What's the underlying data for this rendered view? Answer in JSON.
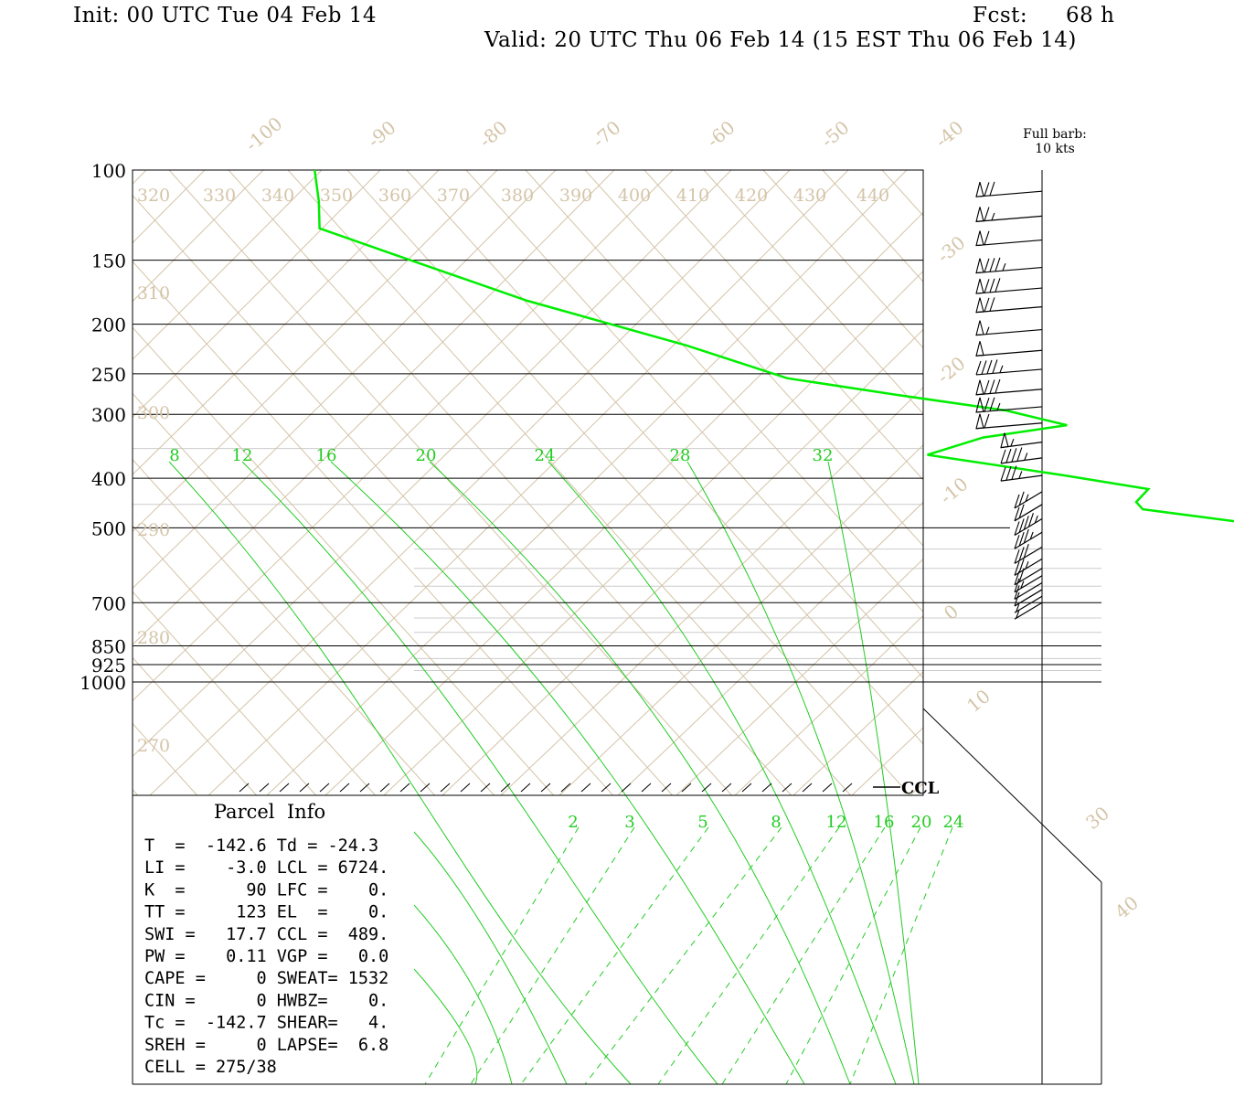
{
  "header": {
    "init": "Init: 00 UTC Tue 04 Feb 14",
    "fcst_label": "Fcst:",
    "fcst_value": "68 h",
    "valid": "Valid: 20 UTC Thu 06 Feb 14 (15 EST Thu 06 Feb 14)"
  },
  "chart_data": {
    "type": "line",
    "title": "",
    "x_axis": "temperature (C), skewed",
    "y_axis": "pressure (hPa), log scale",
    "pressure_tick_labels": [
      "100",
      "150",
      "200",
      "250",
      "300",
      "400",
      "500",
      "700",
      "850",
      "925",
      "1000"
    ],
    "pressure_lines": [
      100,
      150,
      200,
      250,
      300,
      400,
      500,
      700,
      850,
      925,
      1000
    ],
    "temperature_labels": [
      "-100",
      "-90",
      "-80",
      "-70",
      "-60",
      "-50",
      "-40",
      "-30",
      "-20",
      "-10",
      "0",
      "10",
      "30",
      "40"
    ],
    "theta_labels_top": [
      "320",
      "330",
      "340",
      "350",
      "360",
      "370",
      "380",
      "390",
      "400",
      "410",
      "420",
      "430",
      "440"
    ],
    "theta_labels_left": [
      "310",
      "300",
      "290",
      "280",
      "270"
    ],
    "moist_adiabat_labels": [
      "8",
      "12",
      "16",
      "20",
      "24",
      "28",
      "32"
    ],
    "mixing_ratio_labels": [
      "2",
      "3",
      "5",
      "8",
      "12",
      "16",
      "20",
      "24"
    ],
    "ccl_label": "CCL",
    "series": [
      {
        "kind": "temperature",
        "color": "#00ee00",
        "points": [
          {
            "p": 100,
            "t": -28
          },
          {
            "p": 115,
            "t": -29
          },
          {
            "p": 130,
            "t": -30
          },
          {
            "p": 145,
            "t": -28
          },
          {
            "p": 180,
            "t": -24
          },
          {
            "p": 220,
            "t": -19
          },
          {
            "p": 255,
            "t": -16
          },
          {
            "p": 275,
            "t": -12
          },
          {
            "p": 295,
            "t": -8
          },
          {
            "p": 315,
            "t": -6
          },
          {
            "p": 333,
            "t": -10
          },
          {
            "p": 360,
            "t": -13
          },
          {
            "p": 395,
            "t": -8
          },
          {
            "p": 420,
            "t": -5
          },
          {
            "p": 445,
            "t": -6
          },
          {
            "p": 460,
            "t": -6
          },
          {
            "p": 490,
            "t": -2
          }
        ]
      }
    ],
    "wind_barbs": {
      "label_line1": "Full barb:",
      "label_line2": "10 kts",
      "levels": [
        {
          "p": 110,
          "speed": 70
        },
        {
          "p": 123,
          "speed": 65
        },
        {
          "p": 137,
          "speed": 60
        },
        {
          "p": 155,
          "speed": 85
        },
        {
          "p": 170,
          "speed": 80
        },
        {
          "p": 185,
          "speed": 70
        },
        {
          "p": 205,
          "speed": 55
        },
        {
          "p": 225,
          "speed": 50
        },
        {
          "p": 245,
          "speed": 45
        },
        {
          "p": 268,
          "speed": 80
        },
        {
          "p": 290,
          "speed": 75
        },
        {
          "p": 312,
          "speed": 60
        },
        {
          "p": 340,
          "speed": 55
        },
        {
          "p": 365,
          "speed": 45
        },
        {
          "p": 395,
          "speed": 35
        },
        {
          "p": 425,
          "speed": 25
        },
        {
          "p": 450,
          "speed": 20
        },
        {
          "p": 480,
          "speed": 45
        },
        {
          "p": 510,
          "speed": 35
        },
        {
          "p": 545,
          "speed": 30
        },
        {
          "p": 575,
          "speed": 25
        },
        {
          "p": 600,
          "speed": 20
        },
        {
          "p": 620,
          "speed": 15
        },
        {
          "p": 640,
          "speed": 10
        },
        {
          "p": 660,
          "speed": 10
        },
        {
          "p": 680,
          "speed": 5
        },
        {
          "p": 700,
          "speed": 5
        }
      ]
    }
  },
  "parcel_info": {
    "title": "Parcel  Info",
    "rows": [
      "T  =  -142.6 Td = -24.3",
      "LI =    -3.0 LCL = 6724.",
      "K  =      90 LFC =    0.",
      "TT =     123 EL  =    0.",
      "SWI =   17.7 CCL =  489.",
      "PW =    0.11 VGP =   0.0",
      "CAPE =     0 SWEAT= 1532",
      "CIN =      0 HWBZ=    0.",
      "Tc =  -142.7 SHEAR=   4.",
      "SREH =     0 LAPSE=  6.8",
      "CELL = 275/38"
    ]
  }
}
